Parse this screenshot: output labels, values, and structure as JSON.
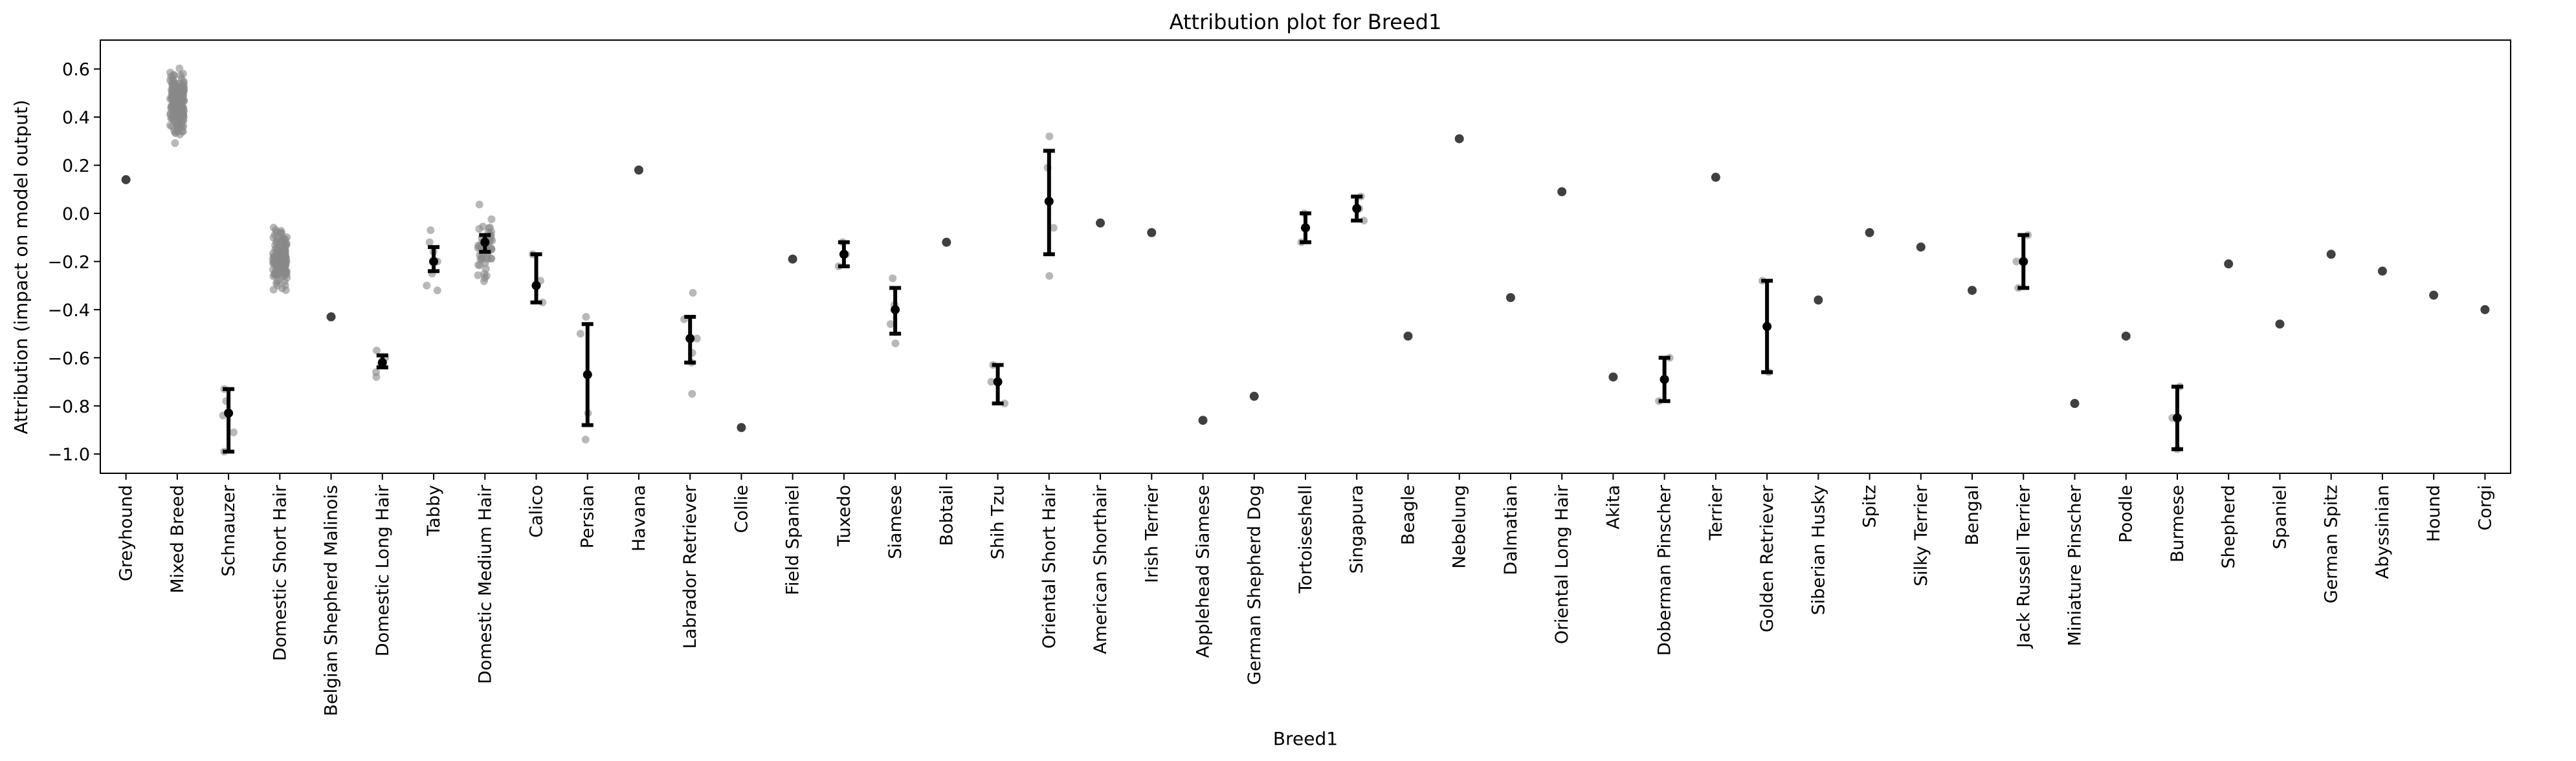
{
  "chart_data": {
    "type": "scatter",
    "title": "Attribution plot for Breed1",
    "xlabel": "Breed1",
    "ylabel": "Attribution (impact on model output)",
    "ylim": [
      -1.08,
      0.72
    ],
    "yticks": [
      -1.0,
      -0.8,
      -0.6,
      -0.4,
      -0.2,
      0.0,
      0.2,
      0.4,
      0.6
    ],
    "ytick_labels": [
      "−1.0",
      "−0.8",
      "−0.6",
      "−0.4",
      "−0.2",
      "0.0",
      "0.2",
      "0.4",
      "0.6"
    ],
    "grid": false,
    "colors": {
      "points": "#888888",
      "single_point": "#404040",
      "mean": "#000000",
      "errorbar": "#000000"
    },
    "categories": [
      "Greyhound",
      "Mixed Breed",
      "Schnauzer",
      "Domestic Short Hair",
      "Belgian Shepherd Malinois",
      "Domestic Long Hair",
      "Tabby",
      "Domestic Medium Hair",
      "Calico",
      "Persian",
      "Havana",
      "Labrador Retriever",
      "Collie",
      "Field Spaniel",
      "Tuxedo",
      "Siamese",
      "Bobtail",
      "Shih Tzu",
      "Oriental Short Hair",
      "American Shorthair",
      "Irish Terrier",
      "Applehead Siamese",
      "German Shepherd Dog",
      "Tortoiseshell",
      "Singapura",
      "Beagle",
      "Nebelung",
      "Dalmatian",
      "Oriental Long Hair",
      "Akita",
      "Doberman Pinscher",
      "Terrier",
      "Golden Retriever",
      "Siberian Husky",
      "Spitz",
      "Silky Terrier",
      "Bengal",
      "Jack Russell Terrier",
      "Miniature Pinscher",
      "Poodle",
      "Burmese",
      "Shepherd",
      "Spaniel",
      "German Spitz",
      "Abyssinian",
      "Hound",
      "Corgi"
    ],
    "series": [
      {
        "category": "Greyhound",
        "mean": 0.14,
        "lower": null,
        "upper": null,
        "points": [
          0.14
        ]
      },
      {
        "category": "Mixed Breed",
        "mean": 0.47,
        "lower": null,
        "upper": null,
        "spread": [
          0.28,
          0.64
        ],
        "n_points": 170
      },
      {
        "category": "Schnauzer",
        "mean": -0.83,
        "lower": -0.99,
        "upper": -0.73,
        "points": [
          -0.73,
          -0.78,
          -0.84,
          -0.91,
          -0.99
        ]
      },
      {
        "category": "Domestic Short Hair",
        "mean": -0.19,
        "lower": null,
        "upper": null,
        "spread": [
          -0.35,
          -0.03
        ],
        "n_points": 140
      },
      {
        "category": "Belgian Shepherd Malinois",
        "mean": -0.43,
        "lower": null,
        "upper": null,
        "points": [
          -0.43
        ]
      },
      {
        "category": "Domestic Long Hair",
        "mean": -0.62,
        "lower": -0.64,
        "upper": -0.59,
        "points": [
          -0.57,
          -0.6,
          -0.63,
          -0.66,
          -0.68
        ]
      },
      {
        "category": "Tabby",
        "mean": -0.2,
        "lower": -0.24,
        "upper": -0.14,
        "points": [
          -0.07,
          -0.12,
          -0.16,
          -0.2,
          -0.25,
          -0.3,
          -0.32
        ]
      },
      {
        "category": "Domestic Medium Hair",
        "mean": -0.12,
        "lower": -0.16,
        "upper": -0.09,
        "spread": [
          -0.34,
          0.07
        ],
        "n_points": 50
      },
      {
        "category": "Calico",
        "mean": -0.3,
        "lower": -0.37,
        "upper": -0.17,
        "points": [
          -0.17,
          -0.28,
          -0.37
        ]
      },
      {
        "category": "Persian",
        "mean": -0.67,
        "lower": -0.88,
        "upper": -0.46,
        "points": [
          -0.43,
          -0.5,
          -0.83,
          -0.94
        ]
      },
      {
        "category": "Havana",
        "mean": 0.18,
        "lower": null,
        "upper": null,
        "points": [
          0.18
        ]
      },
      {
        "category": "Labrador Retriever",
        "mean": -0.52,
        "lower": -0.62,
        "upper": -0.43,
        "points": [
          -0.33,
          -0.44,
          -0.52,
          -0.58,
          -0.62,
          -0.75
        ]
      },
      {
        "category": "Collie",
        "mean": -0.89,
        "lower": null,
        "upper": null,
        "points": [
          -0.89
        ]
      },
      {
        "category": "Field Spaniel",
        "mean": -0.19,
        "lower": null,
        "upper": null,
        "points": [
          -0.19
        ]
      },
      {
        "category": "Tuxedo",
        "mean": -0.17,
        "lower": -0.22,
        "upper": -0.12,
        "points": [
          -0.12,
          -0.17,
          -0.22
        ]
      },
      {
        "category": "Siamese",
        "mean": -0.4,
        "lower": -0.5,
        "upper": -0.31,
        "points": [
          -0.27,
          -0.38,
          -0.46,
          -0.54
        ]
      },
      {
        "category": "Bobtail",
        "mean": -0.12,
        "lower": null,
        "upper": null,
        "points": [
          -0.12
        ]
      },
      {
        "category": "Shih Tzu",
        "mean": -0.7,
        "lower": -0.79,
        "upper": -0.63,
        "points": [
          -0.63,
          -0.7,
          -0.79
        ]
      },
      {
        "category": "Oriental Short Hair",
        "mean": 0.05,
        "lower": -0.17,
        "upper": 0.26,
        "points": [
          0.32,
          0.19,
          -0.06,
          -0.26
        ]
      },
      {
        "category": "American Shorthair",
        "mean": -0.04,
        "lower": null,
        "upper": null,
        "points": [
          -0.04
        ]
      },
      {
        "category": "Irish Terrier",
        "mean": -0.08,
        "lower": null,
        "upper": null,
        "points": [
          -0.08
        ]
      },
      {
        "category": "Applehead Siamese",
        "mean": -0.86,
        "lower": null,
        "upper": null,
        "points": [
          -0.86
        ]
      },
      {
        "category": "German Shepherd Dog",
        "mean": -0.76,
        "lower": null,
        "upper": null,
        "points": [
          -0.76
        ]
      },
      {
        "category": "Tortoiseshell",
        "mean": -0.06,
        "lower": -0.12,
        "upper": 0.0,
        "points": [
          0.0,
          -0.06,
          -0.12
        ]
      },
      {
        "category": "Singapura",
        "mean": 0.02,
        "lower": -0.03,
        "upper": 0.07,
        "points": [
          0.07,
          0.02,
          -0.03
        ]
      },
      {
        "category": "Beagle",
        "mean": -0.51,
        "lower": null,
        "upper": null,
        "points": [
          -0.51
        ]
      },
      {
        "category": "Nebelung",
        "mean": 0.31,
        "lower": null,
        "upper": null,
        "points": [
          0.31
        ]
      },
      {
        "category": "Dalmatian",
        "mean": -0.35,
        "lower": null,
        "upper": null,
        "points": [
          -0.35
        ]
      },
      {
        "category": "Oriental Long Hair",
        "mean": 0.09,
        "lower": null,
        "upper": null,
        "points": [
          0.09
        ]
      },
      {
        "category": "Akita",
        "mean": -0.68,
        "lower": null,
        "upper": null,
        "points": [
          -0.68
        ]
      },
      {
        "category": "Doberman Pinscher",
        "mean": -0.69,
        "lower": -0.78,
        "upper": -0.6,
        "points": [
          -0.6,
          -0.69,
          -0.78
        ]
      },
      {
        "category": "Terrier",
        "mean": 0.15,
        "lower": null,
        "upper": null,
        "points": [
          0.15
        ]
      },
      {
        "category": "Golden Retriever",
        "mean": -0.47,
        "lower": -0.66,
        "upper": -0.28,
        "points": [
          -0.28,
          -0.66
        ]
      },
      {
        "category": "Siberian Husky",
        "mean": -0.36,
        "lower": null,
        "upper": null,
        "points": [
          -0.36
        ]
      },
      {
        "category": "Spitz",
        "mean": -0.08,
        "lower": null,
        "upper": null,
        "points": [
          -0.08
        ]
      },
      {
        "category": "Silky Terrier",
        "mean": -0.14,
        "lower": null,
        "upper": null,
        "points": [
          -0.14
        ]
      },
      {
        "category": "Bengal",
        "mean": -0.32,
        "lower": null,
        "upper": null,
        "points": [
          -0.32
        ]
      },
      {
        "category": "Jack Russell Terrier",
        "mean": -0.2,
        "lower": -0.31,
        "upper": -0.09,
        "points": [
          -0.09,
          -0.2,
          -0.31
        ]
      },
      {
        "category": "Miniature Pinscher",
        "mean": -0.79,
        "lower": null,
        "upper": null,
        "points": [
          -0.79
        ]
      },
      {
        "category": "Poodle",
        "mean": -0.51,
        "lower": null,
        "upper": null,
        "points": [
          -0.51
        ]
      },
      {
        "category": "Burmese",
        "mean": -0.85,
        "lower": -0.98,
        "upper": -0.72,
        "points": [
          -0.72,
          -0.85,
          -0.98
        ]
      },
      {
        "category": "Shepherd",
        "mean": -0.21,
        "lower": null,
        "upper": null,
        "points": [
          -0.21
        ]
      },
      {
        "category": "Spaniel",
        "mean": -0.46,
        "lower": null,
        "upper": null,
        "points": [
          -0.46
        ]
      },
      {
        "category": "German Spitz",
        "mean": -0.17,
        "lower": null,
        "upper": null,
        "points": [
          -0.17
        ]
      },
      {
        "category": "Abyssinian",
        "mean": -0.24,
        "lower": null,
        "upper": null,
        "points": [
          -0.24
        ]
      },
      {
        "category": "Hound",
        "mean": -0.34,
        "lower": null,
        "upper": null,
        "points": [
          -0.34
        ]
      },
      {
        "category": "Corgi",
        "mean": -0.4,
        "lower": null,
        "upper": null,
        "points": [
          -0.4
        ]
      }
    ]
  }
}
